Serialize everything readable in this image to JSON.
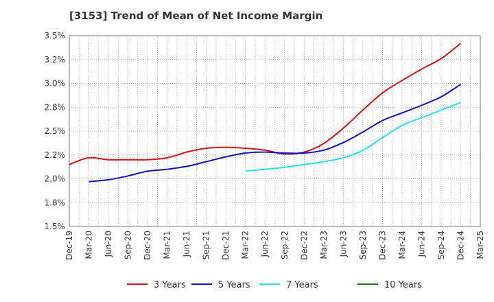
{
  "chart_data": {
    "type": "line",
    "title": "[3153]  Trend of Mean of Net Income Margin",
    "xlabel": "",
    "ylabel": "",
    "x": [
      "Dec-19",
      "Mar-20",
      "Jun-20",
      "Sep-20",
      "Dec-20",
      "Mar-21",
      "Jun-21",
      "Sep-21",
      "Dec-21",
      "Mar-22",
      "Jun-22",
      "Sep-22",
      "Dec-22",
      "Mar-23",
      "Jun-23",
      "Sep-23",
      "Dec-23",
      "Mar-24",
      "Jun-24",
      "Sep-24",
      "Dec-24",
      "Mar-25"
    ],
    "ylim": [
      1.5,
      3.5
    ],
    "yticks": [
      1.5,
      1.75,
      2.0,
      2.25,
      2.5,
      2.75,
      3.0,
      3.25,
      3.5
    ],
    "ytick_labels": [
      "1.5%",
      "1.8%",
      "2.0%",
      "2.2%",
      "2.5%",
      "2.8%",
      "3.0%",
      "3.2%",
      "3.5%"
    ],
    "grid": true,
    "legend_position": "bottom",
    "series": [
      {
        "name": "3 Years",
        "color": "#dd1111",
        "values": [
          2.15,
          2.22,
          2.2,
          2.2,
          2.2,
          2.22,
          2.28,
          2.32,
          2.33,
          2.32,
          2.3,
          2.26,
          2.28,
          2.37,
          2.53,
          2.72,
          2.9,
          3.03,
          3.15,
          3.26,
          3.42,
          null
        ]
      },
      {
        "name": "5 Years",
        "color": "#1111cc",
        "values": [
          null,
          1.97,
          1.99,
          2.03,
          2.08,
          2.1,
          2.13,
          2.18,
          2.23,
          2.27,
          2.28,
          2.27,
          2.27,
          2.3,
          2.38,
          2.49,
          2.61,
          2.69,
          2.77,
          2.86,
          2.99,
          null
        ]
      },
      {
        "name": "7 Years",
        "color": "#22e6e6",
        "values": [
          null,
          null,
          null,
          null,
          null,
          null,
          null,
          null,
          null,
          2.08,
          2.1,
          2.12,
          2.15,
          2.18,
          2.22,
          2.3,
          2.43,
          2.56,
          2.64,
          2.72,
          2.8,
          null
        ]
      },
      {
        "name": "10 Years",
        "color": "#118811",
        "values": [
          null,
          null,
          null,
          null,
          null,
          null,
          null,
          null,
          null,
          null,
          null,
          null,
          null,
          null,
          null,
          null,
          null,
          null,
          null,
          null,
          null,
          null
        ]
      }
    ]
  }
}
